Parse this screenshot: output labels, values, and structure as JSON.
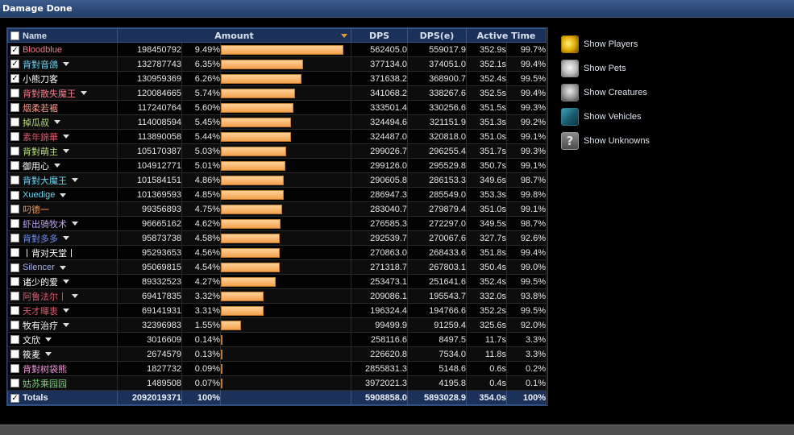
{
  "window": {
    "title": "Damage Done"
  },
  "header": {
    "name": "Name",
    "amount": "Amount",
    "dps": "DPS",
    "dpse": "DPS(e)",
    "active_time": "Active Time"
  },
  "rows": [
    {
      "name": "Bloodblue",
      "color": "#f37b8c",
      "checked": true,
      "dropdown": false,
      "amount": "198450792",
      "pct": "9.49%",
      "fill": 1.0,
      "dps": "562405.0",
      "dpse": "559017.9",
      "time": "352.9s",
      "tpct": "99.7%"
    },
    {
      "name": "背對音鴿",
      "color": "#6fd3ee",
      "checked": true,
      "dropdown": true,
      "amount": "132787743",
      "pct": "6.35%",
      "fill": 0.669,
      "dps": "377134.0",
      "dpse": "374051.0",
      "time": "352.1s",
      "tpct": "99.4%"
    },
    {
      "name": "小熊刀客",
      "color": "#ffffff",
      "checked": true,
      "dropdown": false,
      "amount": "130959369",
      "pct": "6.26%",
      "fill": 0.66,
      "dps": "371638.2",
      "dpse": "368900.7",
      "time": "352.4s",
      "tpct": "99.5%"
    },
    {
      "name": "背對散失魔王",
      "color": "#f37b8c",
      "checked": false,
      "dropdown": true,
      "amount": "120084665",
      "pct": "5.74%",
      "fill": 0.605,
      "dps": "341068.2",
      "dpse": "338267.6",
      "time": "352.5s",
      "tpct": "99.4%"
    },
    {
      "name": "烟柔若裾",
      "color": "#ff9a8a",
      "checked": false,
      "dropdown": false,
      "amount": "117240764",
      "pct": "5.60%",
      "fill": 0.591,
      "dps": "333501.4",
      "dpse": "330256.6",
      "time": "351.5s",
      "tpct": "99.3%"
    },
    {
      "name": "掉瓜叔",
      "color": "#b8e07a",
      "checked": false,
      "dropdown": true,
      "amount": "114008594",
      "pct": "5.45%",
      "fill": 0.574,
      "dps": "324494.6",
      "dpse": "321151.9",
      "time": "351.3s",
      "tpct": "99.2%"
    },
    {
      "name": "素年錦華",
      "color": "#e0556a",
      "checked": false,
      "dropdown": true,
      "amount": "113890058",
      "pct": "5.44%",
      "fill": 0.574,
      "dps": "324487.0",
      "dpse": "320818.0",
      "time": "351.0s",
      "tpct": "99.1%"
    },
    {
      "name": "背對萌主",
      "color": "#b8e07a",
      "checked": false,
      "dropdown": true,
      "amount": "105170387",
      "pct": "5.03%",
      "fill": 0.53,
      "dps": "299026.7",
      "dpse": "296255.4",
      "time": "351.7s",
      "tpct": "99.3%"
    },
    {
      "name": "御用心",
      "color": "#ffffff",
      "checked": false,
      "dropdown": true,
      "amount": "104912771",
      "pct": "5.01%",
      "fill": 0.529,
      "dps": "299126.0",
      "dpse": "295529.8",
      "time": "350.7s",
      "tpct": "99.1%"
    },
    {
      "name": "背對大魔王",
      "color": "#6fd3ee",
      "checked": false,
      "dropdown": true,
      "amount": "101584151",
      "pct": "4.86%",
      "fill": 0.512,
      "dps": "290605.8",
      "dpse": "286153.3",
      "time": "349.6s",
      "tpct": "98.7%"
    },
    {
      "name": "Xuedige",
      "color": "#6fd3ee",
      "checked": false,
      "dropdown": true,
      "amount": "101369593",
      "pct": "4.85%",
      "fill": 0.511,
      "dps": "286947.3",
      "dpse": "285549.0",
      "time": "353.3s",
      "tpct": "99.8%"
    },
    {
      "name": "叼德一",
      "color": "#ff9a4e",
      "checked": false,
      "dropdown": false,
      "amount": "99356893",
      "pct": "4.75%",
      "fill": 0.501,
      "dps": "283040.7",
      "dpse": "279879.4",
      "time": "351.0s",
      "tpct": "99.1%"
    },
    {
      "name": "虾出骑牧术",
      "color": "#b9a4f5",
      "checked": false,
      "dropdown": true,
      "amount": "96665162",
      "pct": "4.62%",
      "fill": 0.487,
      "dps": "276585.3",
      "dpse": "272297.0",
      "time": "349.5s",
      "tpct": "98.7%"
    },
    {
      "name": "背對多多",
      "color": "#6f8ff5",
      "checked": false,
      "dropdown": true,
      "amount": "95873738",
      "pct": "4.58%",
      "fill": 0.483,
      "dps": "292539.7",
      "dpse": "270067.6",
      "time": "327.7s",
      "tpct": "92.6%"
    },
    {
      "name": "丨背对天堂丨",
      "color": "#ffffff",
      "checked": false,
      "dropdown": false,
      "amount": "95293653",
      "pct": "4.56%",
      "fill": 0.48,
      "dps": "270863.0",
      "dpse": "268433.6",
      "time": "351.8s",
      "tpct": "99.4%"
    },
    {
      "name": "Silencer",
      "color": "#9fb0f5",
      "checked": false,
      "dropdown": true,
      "amount": "95069815",
      "pct": "4.54%",
      "fill": 0.479,
      "dps": "271318.7",
      "dpse": "267803.1",
      "time": "350.4s",
      "tpct": "99.0%"
    },
    {
      "name": "诸少的爱",
      "color": "#ffffff",
      "checked": false,
      "dropdown": true,
      "amount": "89332523",
      "pct": "4.27%",
      "fill": 0.45,
      "dps": "253473.1",
      "dpse": "251641.6",
      "time": "352.4s",
      "tpct": "99.5%"
    },
    {
      "name": "阿鲁法尔丨",
      "color": "#e0556a",
      "checked": false,
      "dropdown": true,
      "amount": "69417835",
      "pct": "3.32%",
      "fill": 0.35,
      "dps": "209086.1",
      "dpse": "195543.7",
      "time": "332.0s",
      "tpct": "93.8%"
    },
    {
      "name": "天才暉衷",
      "color": "#e0556a",
      "checked": false,
      "dropdown": true,
      "amount": "69141931",
      "pct": "3.31%",
      "fill": 0.348,
      "dps": "196324.4",
      "dpse": "194766.6",
      "time": "352.2s",
      "tpct": "99.5%"
    },
    {
      "name": "牧有治疗",
      "color": "#ffffff",
      "checked": false,
      "dropdown": true,
      "amount": "32396983",
      "pct": "1.55%",
      "fill": 0.163,
      "dps": "99499.9",
      "dpse": "91259.4",
      "time": "325.6s",
      "tpct": "92.0%"
    },
    {
      "name": "文欣",
      "color": "#ffffff",
      "checked": false,
      "dropdown": true,
      "amount": "3016609",
      "pct": "0.14%",
      "fill": 0.015,
      "dps": "258116.6",
      "dpse": "8497.5",
      "time": "11.7s",
      "tpct": "3.3%"
    },
    {
      "name": "筱麦",
      "color": "#ffffff",
      "checked": false,
      "dropdown": true,
      "amount": "2674579",
      "pct": "0.13%",
      "fill": 0.013,
      "dps": "226620.8",
      "dpse": "7534.0",
      "time": "11.8s",
      "tpct": "3.3%"
    },
    {
      "name": "背對树袋熊",
      "color": "#f39adb",
      "checked": false,
      "dropdown": false,
      "amount": "1827732",
      "pct": "0.09%",
      "fill": 0.009,
      "dps": "2855831.3",
      "dpse": "5148.6",
      "time": "0.6s",
      "tpct": "0.2%"
    },
    {
      "name": "姑苏乘园园",
      "color": "#7ad27a",
      "checked": false,
      "dropdown": false,
      "amount": "1489508",
      "pct": "0.07%",
      "fill": 0.0075,
      "dps": "3972021.3",
      "dpse": "4195.8",
      "time": "0.4s",
      "tpct": "0.1%"
    }
  ],
  "totals": {
    "name": "Totals",
    "amount": "2092019371",
    "pct": "100%",
    "dps": "5908858.0",
    "dpse": "5893028.9",
    "time": "354.0s",
    "tpct": "100%"
  },
  "filters": [
    {
      "label": "Show Players",
      "icon": "players-icon"
    },
    {
      "label": "Show Pets",
      "icon": "pets-icon"
    },
    {
      "label": "Show Creatures",
      "icon": "creatures-icon"
    },
    {
      "label": "Show Vehicles",
      "icon": "vehicles-icon"
    },
    {
      "label": "Show Unknowns",
      "icon": "unknowns-icon"
    }
  ]
}
